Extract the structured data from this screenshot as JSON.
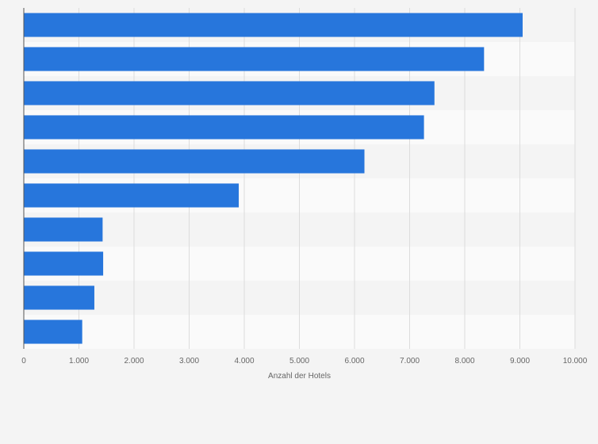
{
  "chart_data": {
    "type": "bar",
    "orientation": "horizontal",
    "xlabel": "Anzahl der Hotels",
    "xlim": [
      0,
      10000
    ],
    "ticks": [
      0,
      1000,
      2000,
      3000,
      4000,
      5000,
      6000,
      7000,
      8000,
      9000,
      10000
    ],
    "tick_labels": [
      "0",
      "1.000",
      "2.000",
      "3.000",
      "4.000",
      "5.000",
      "6.000",
      "7.000",
      "8.000",
      "9.000",
      "10.000"
    ],
    "values": [
      9050,
      8350,
      7450,
      7260,
      6180,
      3900,
      1430,
      1440,
      1280,
      1060
    ],
    "grid": true,
    "bar_color": "#2776dc"
  }
}
